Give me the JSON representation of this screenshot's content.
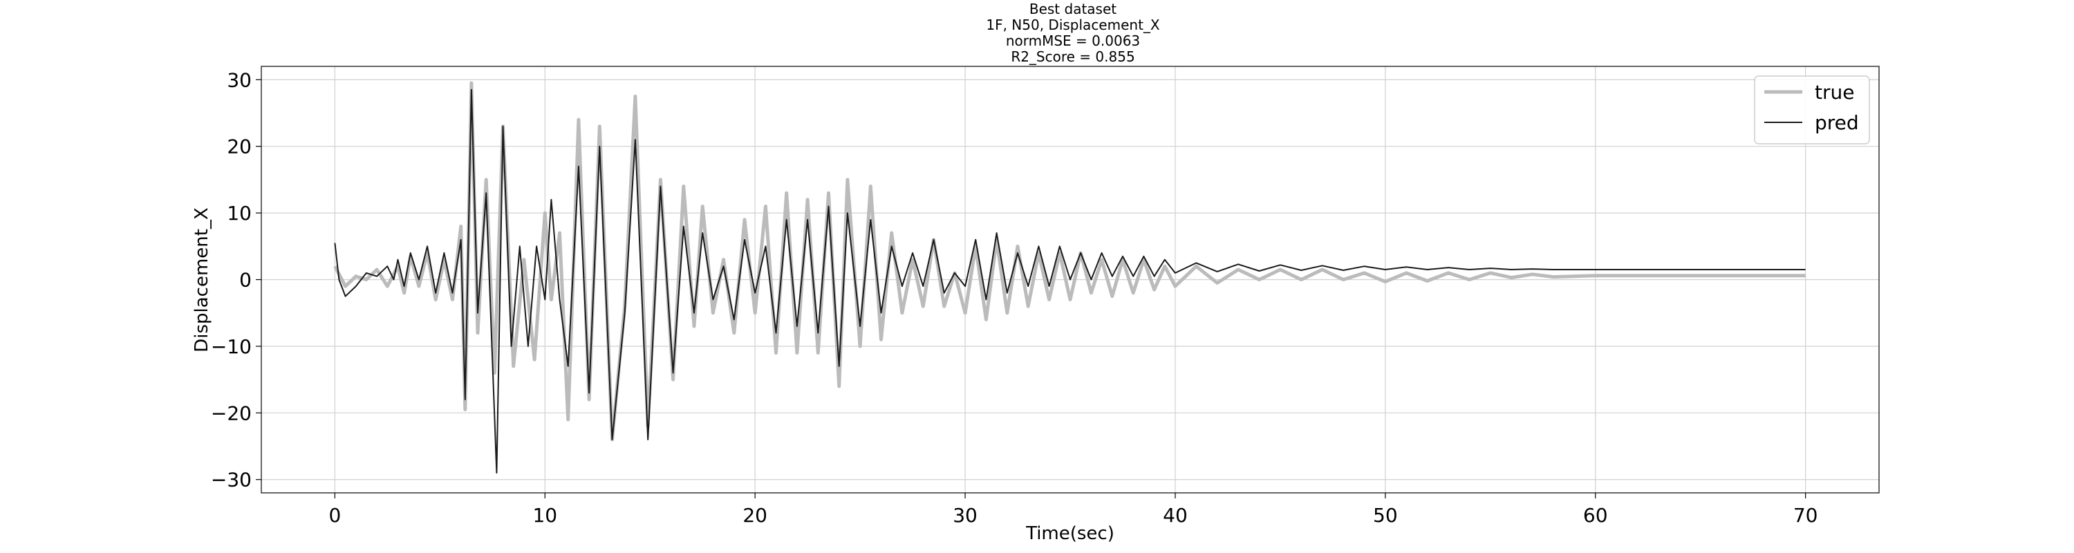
{
  "chart_data": {
    "type": "line",
    "title_lines": [
      "Best dataset",
      "1F, N50, Displacement_X",
      "normMSE = 0.0063",
      "R2_Score = 0.855"
    ],
    "xlabel": "Time(sec)",
    "ylabel": "Displacement_X",
    "xlim": [
      -3.5,
      73.5
    ],
    "ylim": [
      -32,
      32
    ],
    "xticks": [
      0,
      10,
      20,
      30,
      40,
      50,
      60,
      70
    ],
    "yticks": [
      -30,
      -20,
      -10,
      0,
      10,
      20,
      30
    ],
    "xtick_labels": [
      "0",
      "10",
      "20",
      "30",
      "40",
      "50",
      "60",
      "70"
    ],
    "ytick_labels": [
      "−30",
      "−20",
      "−10",
      "0",
      "10",
      "20",
      "30"
    ],
    "grid": true,
    "legend_position": "top-right",
    "series": [
      {
        "name": "true",
        "color": "#bbbbbb",
        "points": [
          [
            0,
            2
          ],
          [
            0.5,
            -1
          ],
          [
            1,
            0.5
          ],
          [
            1.5,
            0
          ],
          [
            2,
            1.5
          ],
          [
            2.5,
            -1
          ],
          [
            3,
            2
          ],
          [
            3.3,
            -2
          ],
          [
            3.6,
            3.5
          ],
          [
            4,
            -1
          ],
          [
            4.4,
            4
          ],
          [
            4.8,
            -3
          ],
          [
            5.2,
            3
          ],
          [
            5.6,
            -3
          ],
          [
            6,
            8
          ],
          [
            6.2,
            -19.5
          ],
          [
            6.5,
            29.5
          ],
          [
            6.8,
            -8
          ],
          [
            7.2,
            15
          ],
          [
            7.6,
            -14
          ],
          [
            8,
            23
          ],
          [
            8.5,
            -13
          ],
          [
            9,
            3
          ],
          [
            9.5,
            -12
          ],
          [
            10,
            10
          ],
          [
            10.3,
            -3
          ],
          [
            10.7,
            7
          ],
          [
            11.1,
            -21
          ],
          [
            11.6,
            24
          ],
          [
            12.1,
            -18
          ],
          [
            12.6,
            23
          ],
          [
            13.2,
            -24
          ],
          [
            13.8,
            -4
          ],
          [
            14.3,
            27.5
          ],
          [
            14.9,
            -22
          ],
          [
            15.5,
            15
          ],
          [
            16.1,
            -15
          ],
          [
            16.6,
            14
          ],
          [
            17.1,
            -7
          ],
          [
            17.5,
            11
          ],
          [
            18,
            -5
          ],
          [
            18.5,
            3
          ],
          [
            19,
            -8
          ],
          [
            19.5,
            9
          ],
          [
            20,
            -5
          ],
          [
            20.5,
            11
          ],
          [
            21,
            -11
          ],
          [
            21.5,
            13
          ],
          [
            22,
            -11
          ],
          [
            22.5,
            12
          ],
          [
            23,
            -11
          ],
          [
            23.5,
            13
          ],
          [
            24,
            -16
          ],
          [
            24.4,
            15
          ],
          [
            25,
            -10
          ],
          [
            25.5,
            14
          ],
          [
            26,
            -9
          ],
          [
            26.5,
            7
          ],
          [
            27,
            -5
          ],
          [
            27.5,
            3
          ],
          [
            28,
            -4
          ],
          [
            28.5,
            6
          ],
          [
            29,
            -4
          ],
          [
            29.5,
            1
          ],
          [
            30,
            -5
          ],
          [
            30.5,
            5
          ],
          [
            31,
            -6
          ],
          [
            31.5,
            6
          ],
          [
            32,
            -5
          ],
          [
            32.5,
            5
          ],
          [
            33,
            -4
          ],
          [
            33.5,
            4
          ],
          [
            34,
            -3
          ],
          [
            34.5,
            4
          ],
          [
            35,
            -3
          ],
          [
            35.5,
            4
          ],
          [
            36,
            -2
          ],
          [
            36.5,
            3
          ],
          [
            37,
            -2.5
          ],
          [
            37.5,
            3
          ],
          [
            38,
            -2
          ],
          [
            38.5,
            3
          ],
          [
            39,
            -1.5
          ],
          [
            39.5,
            2
          ],
          [
            40,
            -1
          ],
          [
            41,
            2
          ],
          [
            42,
            -0.5
          ],
          [
            43,
            1.5
          ],
          [
            44,
            0
          ],
          [
            45,
            1.5
          ],
          [
            46,
            0
          ],
          [
            47,
            1.5
          ],
          [
            48,
            0
          ],
          [
            49,
            1
          ],
          [
            50,
            -0.3
          ],
          [
            51,
            1
          ],
          [
            52,
            -0.2
          ],
          [
            53,
            1
          ],
          [
            54,
            0
          ],
          [
            55,
            1
          ],
          [
            56,
            0.3
          ],
          [
            57,
            0.8
          ],
          [
            58,
            0.4
          ],
          [
            60,
            0.6
          ],
          [
            65,
            0.6
          ],
          [
            70,
            0.6
          ]
        ]
      },
      {
        "name": "pred",
        "color": "#1a1a1a",
        "points": [
          [
            0,
            5.5
          ],
          [
            0.2,
            0
          ],
          [
            0.5,
            -2.5
          ],
          [
            1,
            -1
          ],
          [
            1.5,
            1
          ],
          [
            2,
            0.5
          ],
          [
            2.5,
            2
          ],
          [
            2.8,
            0
          ],
          [
            3,
            3
          ],
          [
            3.3,
            -1
          ],
          [
            3.6,
            4
          ],
          [
            4,
            0
          ],
          [
            4.4,
            5
          ],
          [
            4.8,
            -2
          ],
          [
            5.2,
            4
          ],
          [
            5.6,
            -2
          ],
          [
            6,
            6
          ],
          [
            6.2,
            -18
          ],
          [
            6.5,
            28.5
          ],
          [
            6.8,
            -5
          ],
          [
            7.2,
            13
          ],
          [
            7.7,
            -29
          ],
          [
            8,
            23
          ],
          [
            8.4,
            -10
          ],
          [
            8.8,
            5
          ],
          [
            9.2,
            -10
          ],
          [
            9.6,
            5
          ],
          [
            10,
            -3
          ],
          [
            10.3,
            12
          ],
          [
            10.7,
            -3
          ],
          [
            11.1,
            -13
          ],
          [
            11.6,
            17
          ],
          [
            12.1,
            -17
          ],
          [
            12.6,
            20
          ],
          [
            13.2,
            -24
          ],
          [
            13.8,
            -5
          ],
          [
            14.3,
            21
          ],
          [
            14.9,
            -24
          ],
          [
            15.5,
            14
          ],
          [
            16.1,
            -14
          ],
          [
            16.6,
            8
          ],
          [
            17.1,
            -5
          ],
          [
            17.5,
            7
          ],
          [
            18,
            -3
          ],
          [
            18.5,
            2
          ],
          [
            19,
            -6
          ],
          [
            19.5,
            6
          ],
          [
            20,
            -2
          ],
          [
            20.5,
            5
          ],
          [
            21,
            -8
          ],
          [
            21.5,
            9
          ],
          [
            22,
            -7
          ],
          [
            22.5,
            9
          ],
          [
            23,
            -8
          ],
          [
            23.5,
            11
          ],
          [
            24,
            -13
          ],
          [
            24.4,
            10
          ],
          [
            25,
            -7
          ],
          [
            25.5,
            9
          ],
          [
            26,
            -5
          ],
          [
            26.5,
            5
          ],
          [
            27,
            -1
          ],
          [
            27.5,
            4
          ],
          [
            28,
            -1
          ],
          [
            28.5,
            6
          ],
          [
            29,
            -2
          ],
          [
            29.5,
            1
          ],
          [
            30,
            -1
          ],
          [
            30.5,
            6
          ],
          [
            31,
            -3
          ],
          [
            31.5,
            7
          ],
          [
            32,
            -2
          ],
          [
            32.5,
            4
          ],
          [
            33,
            -1
          ],
          [
            33.5,
            5
          ],
          [
            34,
            -1
          ],
          [
            34.5,
            5
          ],
          [
            35,
            0
          ],
          [
            35.5,
            4
          ],
          [
            36,
            0
          ],
          [
            36.5,
            4
          ],
          [
            37,
            0.5
          ],
          [
            37.5,
            3.5
          ],
          [
            38,
            0.5
          ],
          [
            38.5,
            3.5
          ],
          [
            39,
            0.5
          ],
          [
            39.5,
            3
          ],
          [
            40,
            1
          ],
          [
            41,
            2.5
          ],
          [
            42,
            1.2
          ],
          [
            43,
            2.3
          ],
          [
            44,
            1.3
          ],
          [
            45,
            2.2
          ],
          [
            46,
            1.4
          ],
          [
            47,
            2.1
          ],
          [
            48,
            1.4
          ],
          [
            49,
            2
          ],
          [
            50,
            1.5
          ],
          [
            51,
            1.9
          ],
          [
            52,
            1.5
          ],
          [
            53,
            1.8
          ],
          [
            54,
            1.5
          ],
          [
            55,
            1.7
          ],
          [
            56,
            1.5
          ],
          [
            57,
            1.6
          ],
          [
            58,
            1.5
          ],
          [
            60,
            1.5
          ],
          [
            65,
            1.5
          ],
          [
            70,
            1.5
          ]
        ]
      }
    ]
  }
}
